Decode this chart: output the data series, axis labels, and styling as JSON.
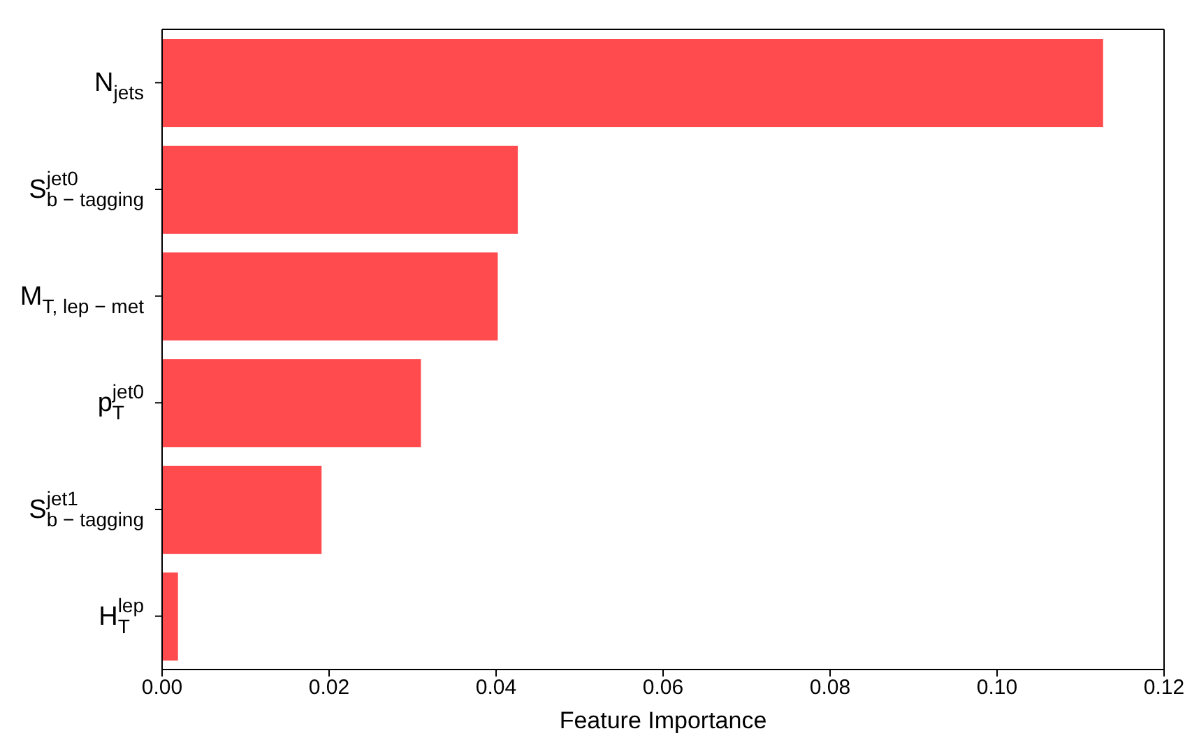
{
  "chart_data": {
    "type": "bar",
    "orientation": "horizontal",
    "xlabel": "Feature Importance",
    "categories": [
      "N$_{jets}$",
      "S$^{jet0}$$_{b − tagging}$",
      "M$_{T, lep − met}$",
      "p$^{jet0}$$_{T}$",
      "S$^{jet1}$$_{b − tagging}$",
      "H$^{lep}$$_{T}$"
    ],
    "values": [
      0.1127,
      0.0426,
      0.0402,
      0.031,
      0.0191,
      0.0019
    ],
    "color": "#ff4b4e",
    "xlim": [
      0,
      0.12
    ],
    "xticks": [
      {
        "value": 0,
        "label": "0.00"
      },
      {
        "value": 0.02,
        "label": "0.02"
      },
      {
        "value": 0.04,
        "label": "0.04"
      },
      {
        "value": 0.06,
        "label": "0.06"
      },
      {
        "value": 0.08,
        "label": "0.08"
      },
      {
        "value": 0.1,
        "label": "0.10"
      },
      {
        "value": 0.12,
        "label": "0.12"
      }
    ],
    "grid": false,
    "legend": false
  }
}
